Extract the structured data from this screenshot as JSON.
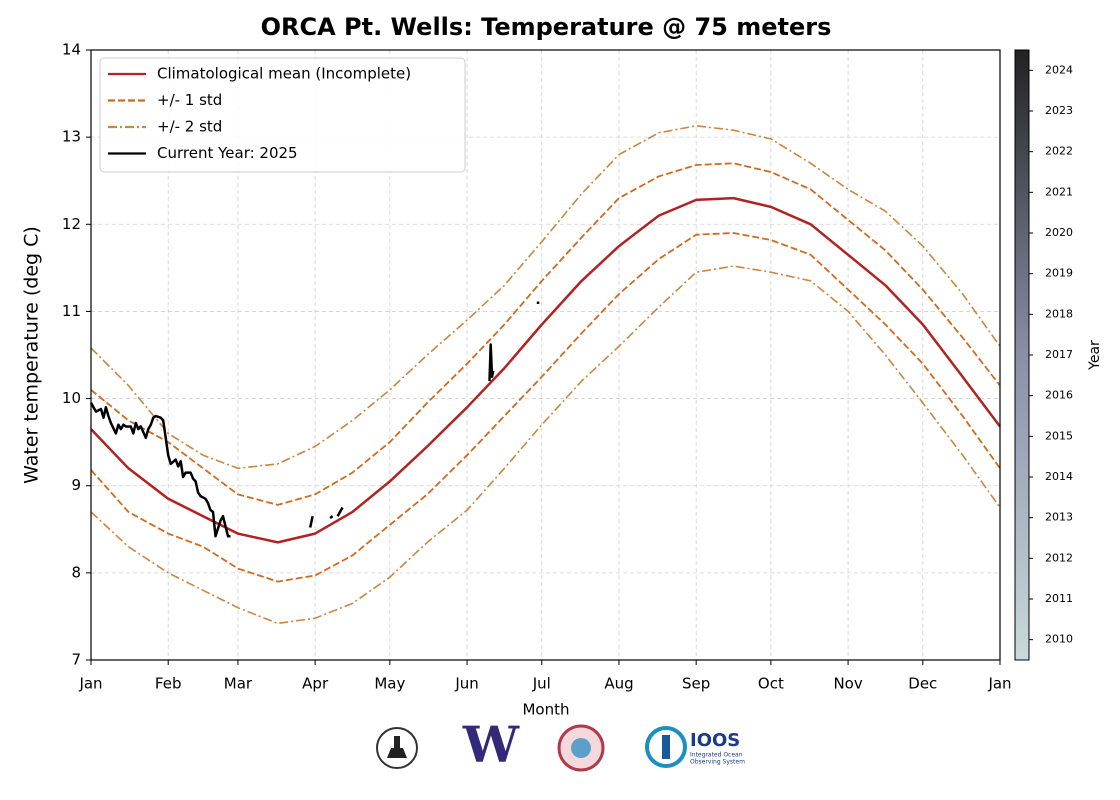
{
  "chart_data": {
    "type": "line",
    "title": "ORCA Pt. Wells: Temperature @ 75 meters",
    "x_label": "Month",
    "y_label": "Water temperature (deg C)",
    "xlim": [
      0,
      365
    ],
    "xticks": [
      {
        "value": 0,
        "label": "Jan"
      },
      {
        "value": 31,
        "label": "Feb"
      },
      {
        "value": 59,
        "label": "Mar"
      },
      {
        "value": 90,
        "label": "Apr"
      },
      {
        "value": 120,
        "label": "May"
      },
      {
        "value": 151,
        "label": "Jun"
      },
      {
        "value": 181,
        "label": "Jul"
      },
      {
        "value": 212,
        "label": "Aug"
      },
      {
        "value": 243,
        "label": "Sep"
      },
      {
        "value": 273,
        "label": "Oct"
      },
      {
        "value": 304,
        "label": "Nov"
      },
      {
        "value": 334,
        "label": "Dec"
      },
      {
        "value": 365,
        "label": "Jan"
      }
    ],
    "ylim": [
      7,
      14
    ],
    "yticks": [
      7,
      8,
      9,
      10,
      11,
      12,
      13,
      14
    ],
    "grid": true,
    "legend": "upper left",
    "x": [
      0,
      15,
      31,
      45,
      59,
      75,
      90,
      105,
      120,
      135,
      151,
      166,
      181,
      197,
      212,
      228,
      243,
      258,
      273,
      289,
      304,
      319,
      334,
      350,
      365
    ],
    "series": [
      {
        "name": "Climatological mean (Incomplete)",
        "color": "#b22222",
        "style": "solid",
        "values": [
          9.65,
          9.2,
          8.85,
          8.65,
          8.45,
          8.35,
          8.45,
          8.7,
          9.05,
          9.45,
          9.9,
          10.35,
          10.85,
          11.35,
          11.75,
          12.1,
          12.28,
          12.3,
          12.2,
          12.0,
          11.65,
          11.3,
          10.85,
          10.25,
          9.68
        ]
      },
      {
        "name": "+/- 1 std",
        "color": "#d2691e",
        "style": "dashed",
        "upper": [
          10.1,
          9.75,
          9.5,
          9.2,
          8.9,
          8.78,
          8.9,
          9.15,
          9.5,
          9.95,
          10.4,
          10.85,
          11.35,
          11.85,
          12.3,
          12.55,
          12.68,
          12.7,
          12.6,
          12.4,
          12.05,
          11.7,
          11.25,
          10.7,
          10.15
        ],
        "lower": [
          9.18,
          8.7,
          8.45,
          8.3,
          8.05,
          7.9,
          7.97,
          8.2,
          8.55,
          8.9,
          9.35,
          9.8,
          10.25,
          10.75,
          11.2,
          11.6,
          11.88,
          11.9,
          11.82,
          11.65,
          11.25,
          10.85,
          10.4,
          9.8,
          9.2
        ]
      },
      {
        "name": "+/- 2 std",
        "color": "#cd853f",
        "style": "dashdot",
        "upper": [
          10.58,
          10.15,
          9.6,
          9.35,
          9.2,
          9.25,
          9.45,
          9.75,
          10.1,
          10.5,
          10.9,
          11.3,
          11.8,
          12.35,
          12.8,
          13.05,
          13.13,
          13.08,
          12.98,
          12.7,
          12.4,
          12.15,
          11.75,
          11.2,
          10.6
        ],
        "lower": [
          8.7,
          8.3,
          8.0,
          7.8,
          7.6,
          7.42,
          7.48,
          7.65,
          7.95,
          8.35,
          8.72,
          9.2,
          9.7,
          10.2,
          10.6,
          11.05,
          11.45,
          11.52,
          11.45,
          11.35,
          11.0,
          10.5,
          9.95,
          9.35,
          8.75
        ]
      },
      {
        "name": "Current Year: 2025",
        "color": "#000000",
        "style": "solid",
        "x": [
          0,
          1,
          2,
          4,
          5,
          6,
          7,
          8,
          10,
          11,
          12,
          13,
          14,
          16,
          17,
          18,
          19,
          20,
          22,
          23,
          24,
          25,
          26,
          28,
          29,
          30,
          31,
          32,
          34,
          35,
          36,
          37,
          38,
          40,
          41,
          42,
          43,
          44,
          46,
          47,
          48,
          49,
          50,
          52,
          53,
          55,
          56,
          null,
          88,
          89,
          null,
          96,
          97,
          null,
          99,
          101,
          null,
          160,
          160.5,
          161,
          161.5,
          null,
          179,
          180
        ],
        "values": [
          9.95,
          9.9,
          9.85,
          9.88,
          9.78,
          9.9,
          9.8,
          9.72,
          9.6,
          9.7,
          9.65,
          9.7,
          9.68,
          9.68,
          9.6,
          9.72,
          9.65,
          9.68,
          9.55,
          9.65,
          9.7,
          9.78,
          9.8,
          9.78,
          9.75,
          9.55,
          9.35,
          9.25,
          9.3,
          9.22,
          9.28,
          9.1,
          9.15,
          9.15,
          9.08,
          9.05,
          8.92,
          8.88,
          8.85,
          8.8,
          8.72,
          8.7,
          8.42,
          8.6,
          8.65,
          8.42,
          8.42,
          null,
          8.52,
          8.65,
          null,
          8.63,
          8.65,
          null,
          8.65,
          8.75,
          null,
          10.2,
          10.62,
          10.25,
          10.32,
          null,
          11.1,
          11.1
        ]
      }
    ],
    "colorbar": {
      "label": "Year",
      "lim": [
        2009.5,
        2024.5
      ],
      "ticks": [
        2010,
        2011,
        2012,
        2013,
        2014,
        2015,
        2016,
        2017,
        2018,
        2019,
        2020,
        2021,
        2022,
        2023,
        2024
      ],
      "colors": [
        "#c8dada",
        "#8a8fa8",
        "#222222"
      ]
    }
  },
  "footer": {
    "logo_w": "W",
    "ioos": "IOOS",
    "ioos_line1": "Integrated Ocean",
    "ioos_line2": "Observing System"
  }
}
